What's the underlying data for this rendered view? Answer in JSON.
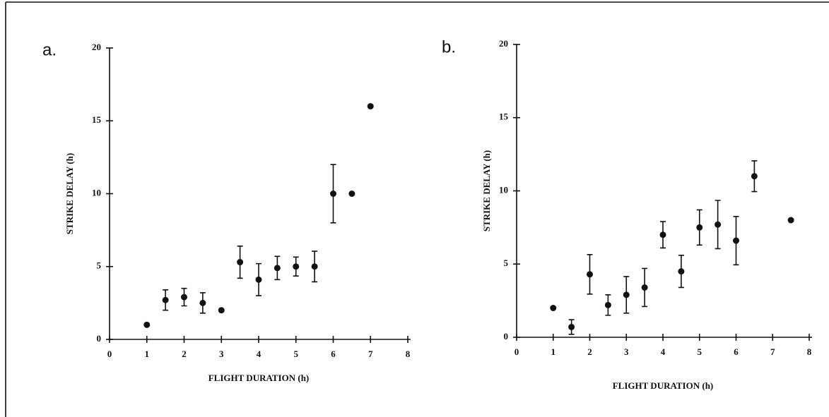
{
  "chart_data": [
    {
      "type": "scatter",
      "label": "a.",
      "xlabel": "FLIGHT DURATION (h)",
      "ylabel": "STRIKE DELAY (h)",
      "color": "#111111",
      "x": [
        1,
        1.5,
        2,
        2.5,
        3,
        3.5,
        4,
        4.5,
        5,
        5.5,
        6,
        6.5,
        7
      ],
      "values": [
        1,
        2.7,
        2.9,
        2.5,
        2,
        5.3,
        4.1,
        4.9,
        5,
        5,
        10,
        10,
        16
      ],
      "errors": [
        null,
        0.7,
        0.6,
        0.7,
        null,
        1.1,
        1.1,
        0.8,
        0.65,
        1.05,
        2,
        null,
        null
      ],
      "xlim": [
        0,
        8
      ],
      "ylim": [
        0,
        20
      ],
      "xticks": [
        0,
        1,
        2,
        3,
        4,
        5,
        6,
        7,
        8
      ],
      "yticks": [
        0,
        5,
        10,
        15,
        20
      ]
    },
    {
      "type": "scatter",
      "label": "b.",
      "xlabel": "FLIGHT DURATION (h)",
      "ylabel": "STRIKE DELAY (h)",
      "color": "#111111",
      "x": [
        1,
        1.5,
        2,
        2.5,
        3,
        3.5,
        4,
        4.5,
        5,
        5.5,
        6,
        6.5,
        7.5
      ],
      "values": [
        2,
        0.7,
        4.3,
        2.2,
        2.9,
        3.4,
        7,
        4.5,
        7.5,
        7.7,
        6.6,
        11,
        8
      ],
      "errors": [
        null,
        0.5,
        1.35,
        0.7,
        1.25,
        1.3,
        0.9,
        1.1,
        1.2,
        1.65,
        1.65,
        1.05,
        null
      ],
      "xlim": [
        0,
        8
      ],
      "ylim": [
        0,
        20
      ],
      "xticks": [
        0,
        1,
        2,
        3,
        4,
        5,
        6,
        7,
        8
      ],
      "yticks": [
        0,
        5,
        10,
        15,
        20
      ]
    }
  ]
}
